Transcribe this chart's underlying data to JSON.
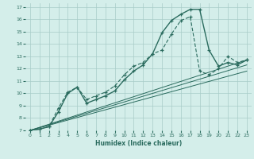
{
  "xlabel": "Humidex (Indice chaleur)",
  "bg_color": "#d4eeea",
  "line_color": "#2a6b5e",
  "grid_color": "#a8ccc8",
  "xlim": [
    -0.5,
    23.5
  ],
  "ylim": [
    7,
    17.3
  ],
  "xticks": [
    0,
    1,
    2,
    3,
    4,
    5,
    6,
    7,
    8,
    9,
    10,
    11,
    12,
    13,
    14,
    15,
    16,
    17,
    18,
    19,
    20,
    21,
    22,
    23
  ],
  "yticks": [
    7,
    8,
    9,
    10,
    11,
    12,
    13,
    14,
    15,
    16,
    17
  ],
  "main_y": [
    7,
    7.1,
    7.3,
    8.5,
    10.0,
    10.5,
    9.2,
    9.5,
    9.8,
    10.2,
    11.1,
    11.8,
    12.3,
    13.2,
    14.9,
    15.9,
    16.4,
    16.8,
    16.8,
    13.5,
    12.2,
    12.5,
    12.3,
    12.7
  ],
  "secondary_y": [
    7,
    7.1,
    7.3,
    8.8,
    10.1,
    10.5,
    9.5,
    9.8,
    10.1,
    10.6,
    11.5,
    12.2,
    12.5,
    13.2,
    13.5,
    14.8,
    15.9,
    16.2,
    11.8,
    11.5,
    12.0,
    13.0,
    12.5,
    12.7
  ],
  "line1_y_end": 12.7,
  "line2_y_end": 12.3,
  "line3_y_end": 11.8
}
